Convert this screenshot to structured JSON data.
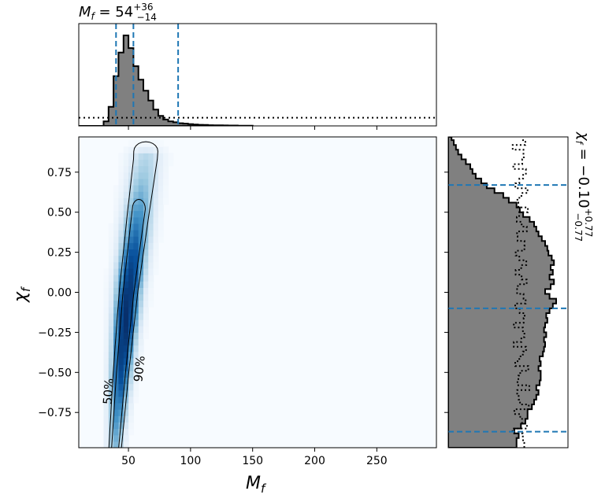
{
  "chart_data": {
    "type": "corner",
    "xlabel": "M_f",
    "ylabel": "χ_f",
    "top_title": {
      "variable": "M_f",
      "text": "M_f = 54^{+36}_{-14}",
      "median": 54,
      "upper_error": 36,
      "lower_error": 14,
      "median_label": "54",
      "upper_label": "+36",
      "lower_label": "−14"
    },
    "right_title": {
      "variable": "χ_f",
      "text": "χ_f = −0.10^{+0.77}_{-0.77}",
      "median": -0.1,
      "upper_error": 0.77,
      "lower_error": 0.77,
      "median_label": "−0.10",
      "upper_label": "+0.77",
      "lower_label": "−0.77"
    },
    "xlim": [
      10,
      298
    ],
    "ylim": [
      -0.97,
      0.97
    ],
    "xticks": [
      50,
      100,
      150,
      200,
      250
    ],
    "xtick_labels": [
      "50",
      "100",
      "150",
      "200",
      "250"
    ],
    "yticks": [
      0.75,
      0.5,
      0.25,
      0.0,
      -0.25,
      -0.5,
      -0.75
    ],
    "ytick_labels": [
      "0.75",
      "0.50",
      "0.25",
      "0.00",
      "−0.25",
      "−0.50",
      "−0.75"
    ],
    "contour_labels": [
      "50%",
      "90%"
    ],
    "marginal_top": {
      "bin_edges": [
        10,
        14,
        18,
        22,
        26,
        30,
        34,
        38,
        42,
        46,
        50,
        54,
        58,
        62,
        66,
        70,
        74,
        78,
        82,
        86,
        90,
        94,
        98,
        102,
        106,
        110,
        114,
        118,
        122,
        126,
        130,
        134,
        138,
        142,
        146,
        150
      ],
      "density": [
        0,
        0,
        0,
        0,
        0,
        0.05,
        0.21,
        0.55,
        0.81,
        1.0,
        0.86,
        0.66,
        0.51,
        0.39,
        0.28,
        0.18,
        0.11,
        0.07,
        0.05,
        0.04,
        0.03,
        0.025,
        0.02,
        0.015,
        0.012,
        0.01,
        0.008,
        0.007,
        0.006,
        0.005,
        0.004,
        0.004,
        0.003,
        0.003,
        0.003
      ],
      "prior_level": 0.09,
      "quantile_lines": [
        40,
        54,
        90
      ]
    },
    "marginal_right": {
      "bin_edges": [
        -0.97,
        -0.94,
        -0.91,
        -0.88,
        -0.85,
        -0.82,
        -0.79,
        -0.76,
        -0.73,
        -0.7,
        -0.67,
        -0.64,
        -0.61,
        -0.58,
        -0.55,
        -0.52,
        -0.49,
        -0.46,
        -0.43,
        -0.4,
        -0.37,
        -0.34,
        -0.31,
        -0.28,
        -0.25,
        -0.22,
        -0.19,
        -0.16,
        -0.13,
        -0.1,
        -0.07,
        -0.04,
        -0.01,
        0.02,
        0.05,
        0.08,
        0.11,
        0.14,
        0.17,
        0.2,
        0.23,
        0.26,
        0.29,
        0.32,
        0.35,
        0.38,
        0.41,
        0.44,
        0.47,
        0.5,
        0.53,
        0.56,
        0.59,
        0.62,
        0.65,
        0.68,
        0.71,
        0.74,
        0.77,
        0.8,
        0.83,
        0.86,
        0.89,
        0.92,
        0.95,
        0.97
      ],
      "density": [
        0.62,
        0.62,
        0.64,
        0.6,
        0.66,
        0.7,
        0.72,
        0.72,
        0.76,
        0.78,
        0.8,
        0.82,
        0.8,
        0.83,
        0.84,
        0.84,
        0.82,
        0.84,
        0.83,
        0.86,
        0.87,
        0.88,
        0.87,
        0.89,
        0.87,
        0.88,
        0.9,
        0.89,
        0.92,
        0.95,
        0.98,
        0.92,
        0.88,
        0.93,
        0.96,
        0.92,
        0.95,
        0.93,
        0.96,
        0.94,
        0.91,
        0.9,
        0.88,
        0.85,
        0.82,
        0.8,
        0.78,
        0.74,
        0.68,
        0.65,
        0.62,
        0.55,
        0.5,
        0.42,
        0.35,
        0.3,
        0.25,
        0.22,
        0.2,
        0.16,
        0.12,
        0.09,
        0.07,
        0.05,
        0.03
      ],
      "prior_level": 0.66,
      "quantile_lines": [
        -0.87,
        -0.1,
        0.67
      ]
    },
    "joint_density": {
      "description_centers": "ridge of high posterior density",
      "ridge": [
        {
          "chi": -0.9,
          "M": 40
        },
        {
          "chi": -0.5,
          "M": 44
        },
        {
          "chi": 0.0,
          "M": 50
        },
        {
          "chi": 0.5,
          "M": 58
        },
        {
          "chi": 0.85,
          "M": 64
        }
      ]
    },
    "colors": {
      "histogram_fill": "#808080",
      "histogram_edge": "#000000",
      "quantile_line": "#1f77b4",
      "density_low": "#f7fbff",
      "density_high": "#08306b",
      "contour": "#000000"
    }
  }
}
